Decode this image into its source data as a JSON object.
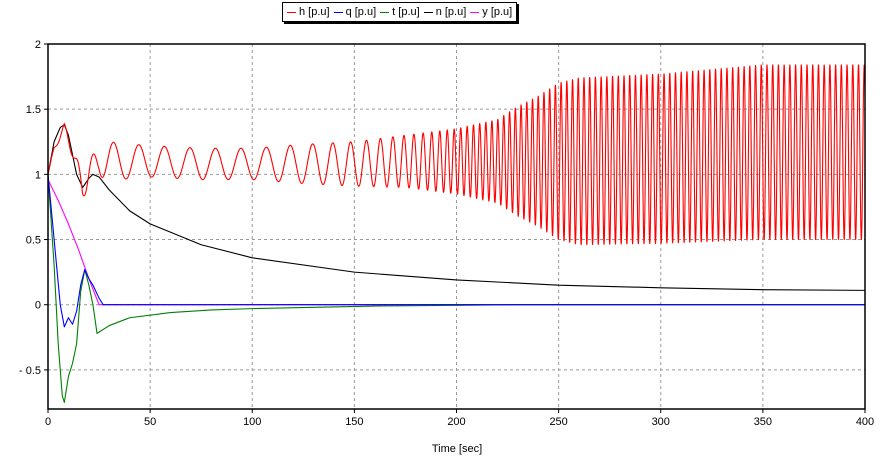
{
  "chart_data": {
    "type": "line",
    "xlabel": "Time [sec]",
    "ylabel": "",
    "xlim": [
      0,
      400
    ],
    "ylim": [
      -0.8,
      2.0
    ],
    "xticks": [
      0,
      50,
      100,
      150,
      200,
      250,
      300,
      350,
      400
    ],
    "xtick_labels": [
      "0",
      "50",
      "100",
      "150",
      "200",
      "250",
      "300",
      "350",
      "400"
    ],
    "yticks": [
      2,
      1.5,
      1,
      0.5,
      0,
      -0.5
    ],
    "ytick_labels": [
      "2",
      "1.5",
      "1",
      "0.5",
      "0",
      "- 0.5"
    ],
    "grid": true,
    "legend_position": "top-center",
    "series": [
      {
        "name": "h [p.u]",
        "color": "#ff0000",
        "style": "oscillation",
        "x": [
          0,
          3,
          8,
          12,
          17,
          25,
          35,
          50,
          75,
          100,
          125,
          150,
          175,
          200,
          220,
          230,
          240,
          250,
          260,
          300,
          350,
          400
        ],
        "center": [
          1.0,
          1.2,
          1.36,
          1.18,
          0.9,
          1.12,
          1.1,
          1.1,
          1.08,
          1.08,
          1.08,
          1.08,
          1.1,
          1.1,
          1.1,
          1.1,
          1.1,
          1.1,
          1.1,
          1.12,
          1.17,
          1.17
        ],
        "amplitude": [
          0,
          0.02,
          0.03,
          0.05,
          0.08,
          0.14,
          0.14,
          0.12,
          0.12,
          0.12,
          0.15,
          0.17,
          0.2,
          0.25,
          0.32,
          0.42,
          0.5,
          0.6,
          0.64,
          0.65,
          0.67,
          0.67
        ],
        "period": [
          6.5,
          6.5,
          6.5,
          6.5,
          6.5,
          10,
          12.5,
          12.5,
          12.5,
          12.5,
          11,
          8,
          5,
          3.2,
          2.9,
          2.8,
          2.8,
          2.8,
          2.8,
          2.8,
          2.8,
          2.8
        ]
      },
      {
        "name": "q [p.u]",
        "color": "#0000ff",
        "x": [
          0,
          3,
          6,
          8,
          10,
          12,
          14,
          16,
          18,
          20,
          22,
          25,
          27,
          30,
          400
        ],
        "y": [
          1.0,
          0.5,
          0.0,
          -0.17,
          -0.1,
          -0.15,
          -0.05,
          0.15,
          0.27,
          0.2,
          0.15,
          0.05,
          0.0,
          0.0,
          0.0
        ]
      },
      {
        "name": "t [p.u]",
        "color": "#008000",
        "x": [
          0,
          3,
          5,
          7,
          8,
          10,
          12,
          14,
          16,
          18,
          20,
          22,
          24,
          30,
          40,
          60,
          80,
          100,
          130,
          160,
          200,
          230,
          400
        ],
        "y": [
          1.0,
          0.3,
          -0.3,
          -0.7,
          -0.75,
          -0.55,
          -0.45,
          -0.3,
          0.1,
          0.27,
          0.15,
          0.0,
          -0.22,
          -0.16,
          -0.1,
          -0.06,
          -0.04,
          -0.03,
          -0.02,
          -0.01,
          -0.005,
          0.0,
          0.0
        ]
      },
      {
        "name": "n [p.u]",
        "color": "#000000",
        "x": [
          0,
          3,
          6,
          8,
          10,
          12,
          14,
          17,
          20,
          22,
          25,
          30,
          40,
          50,
          75,
          100,
          150,
          200,
          250,
          300,
          350,
          400
        ],
        "y": [
          1.0,
          1.25,
          1.36,
          1.38,
          1.3,
          1.15,
          1.0,
          0.9,
          0.97,
          1.0,
          0.98,
          0.88,
          0.72,
          0.62,
          0.46,
          0.36,
          0.25,
          0.19,
          0.15,
          0.13,
          0.115,
          0.11
        ]
      },
      {
        "name": "y [p.u]",
        "color": "#ff00ff",
        "x": [
          0,
          5,
          10,
          15,
          20,
          25,
          400
        ],
        "y": [
          0.96,
          0.8,
          0.62,
          0.42,
          0.2,
          0.0,
          0.0
        ]
      }
    ]
  }
}
